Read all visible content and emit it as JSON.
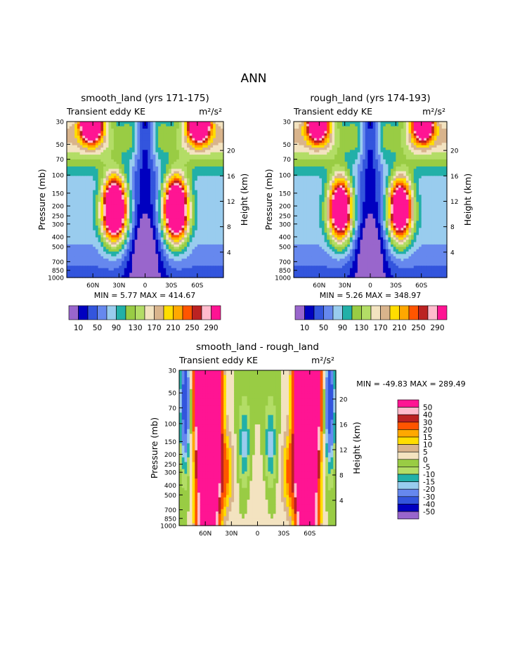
{
  "page_title": "ANN",
  "chart_data": [
    {
      "type": "heatmap",
      "title": "smooth_land (yrs 171-175)",
      "subtitle_left": "Transient eddy KE",
      "subtitle_right": "m²/s²",
      "xlabel": "",
      "ylabel": "Pressure (mb)",
      "ylabel_right": "Height (km)",
      "x_ticks": [
        "60N",
        "30N",
        "0",
        "30S",
        "60S"
      ],
      "y_ticks": [
        "30",
        "50",
        "70",
        "100",
        "150",
        "200",
        "250",
        "300",
        "400",
        "500",
        "700",
        "850",
        "1000"
      ],
      "y_right_ticks": [
        "20",
        "16",
        "12",
        "8",
        "4"
      ],
      "min_max": "MIN =    5.77   MAX = 414.67",
      "colorbar_labels": [
        "10",
        "50",
        "90",
        "130",
        "170",
        "210",
        "250",
        "290"
      ],
      "peak_value": 414.67
    },
    {
      "type": "heatmap",
      "title": "rough_land (yrs 174-193)",
      "subtitle_left": "Transient eddy KE",
      "subtitle_right": "m²/s²",
      "xlabel": "",
      "ylabel": "Pressure (mb)",
      "ylabel_right": "Height (km)",
      "x_ticks": [
        "60N",
        "30N",
        "0",
        "30S",
        "60S"
      ],
      "y_ticks": [
        "30",
        "50",
        "70",
        "100",
        "150",
        "200",
        "250",
        "300",
        "400",
        "500",
        "700",
        "850",
        "1000"
      ],
      "y_right_ticks": [
        "20",
        "16",
        "12",
        "8",
        "4"
      ],
      "min_max": "MIN =    5.26   MAX = 348.97",
      "colorbar_labels": [
        "10",
        "50",
        "90",
        "130",
        "170",
        "210",
        "250",
        "290"
      ],
      "peak_value": 348.97
    },
    {
      "type": "heatmap",
      "title": "smooth_land - rough_land",
      "subtitle_left": "Transient eddy KE",
      "subtitle_right": "m²/s²",
      "xlabel": "",
      "ylabel": "Pressure (mb)",
      "ylabel_right": "Height (km)",
      "x_ticks": [
        "60N",
        "30N",
        "0",
        "30S",
        "60S"
      ],
      "y_ticks": [
        "30",
        "50",
        "70",
        "100",
        "150",
        "200",
        "250",
        "300",
        "400",
        "500",
        "700",
        "850",
        "1000"
      ],
      "y_right_ticks": [
        "20",
        "16",
        "12",
        "8",
        "4"
      ],
      "min_max": "MIN = -49.83   MAX = 289.49",
      "colorbar_labels": [
        "50",
        "40",
        "30",
        "20",
        "15",
        "10",
        "5",
        "0",
        "-5",
        "-10",
        "-15",
        "-20",
        "-30",
        "-40",
        "-50"
      ]
    }
  ],
  "colors": {
    "kep_palette": [
      "#9966cc",
      "#0000c0",
      "#3355dd",
      "#6688ee",
      "#99ccee",
      "#22b0a8",
      "#99cc44",
      "#b3dd66",
      "#f3e3c0",
      "#d9b48c",
      "#ffdd00",
      "#ffa800",
      "#ff5500",
      "#bb2222",
      "#ffbbcc",
      "#ff1493"
    ],
    "diff_palette": [
      "#ff1493",
      "#ffbbcc",
      "#bb2222",
      "#ff5500",
      "#ffa800",
      "#ffdd00",
      "#d9b48c",
      "#f3e3c0",
      "#99cc44",
      "#b3dd66",
      "#22b0a8",
      "#99ccee",
      "#6688ee",
      "#3355dd",
      "#0000c0",
      "#9966cc"
    ]
  }
}
